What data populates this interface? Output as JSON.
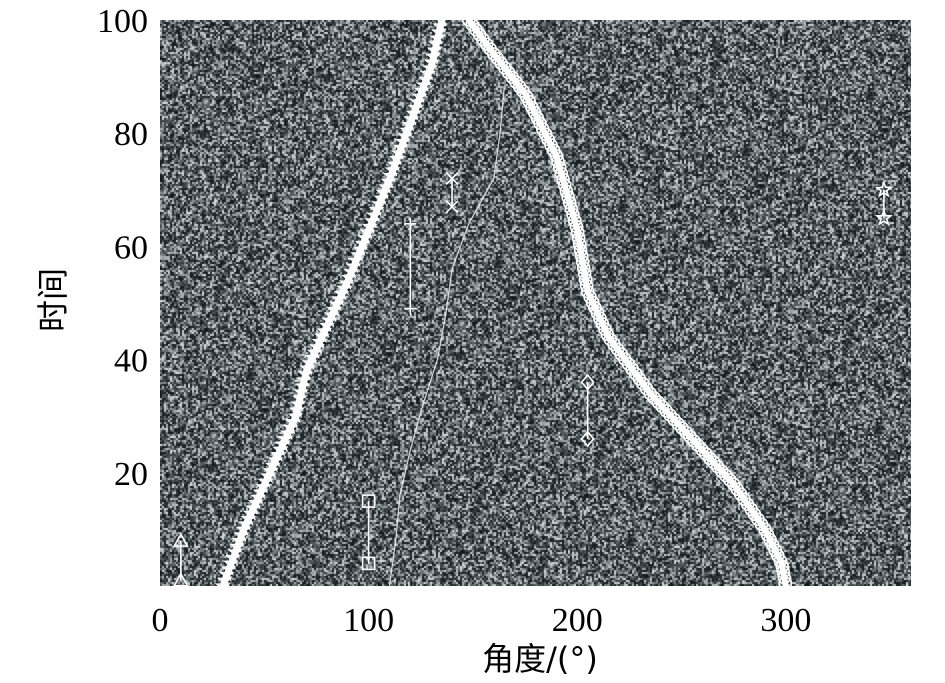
{
  "chart_data": {
    "type": "scatter",
    "title": "",
    "xlabel": "角度/(°)",
    "ylabel": "时间",
    "xlim": [
      0,
      360
    ],
    "ylim": [
      0,
      100
    ],
    "xticks": [
      0,
      100,
      200,
      300
    ],
    "xtick_labels": [
      "0",
      "100",
      "200",
      "300"
    ],
    "yticks": [
      20,
      40,
      60,
      80,
      100
    ],
    "ytick_labels": [
      "20",
      "40",
      "60",
      "80",
      "100"
    ],
    "background": "noise",
    "grid": false,
    "legend": "none",
    "colors": {
      "marker": "#ffffff",
      "noise_dark": "#1c2428",
      "noise_light": "#d0d8dc"
    },
    "tracks": [
      {
        "marker": "star",
        "points": [
          [
            30,
            0
          ],
          [
            40,
            10
          ],
          [
            50,
            18
          ],
          [
            60,
            26
          ],
          [
            65,
            30
          ],
          [
            70,
            38
          ],
          [
            80,
            46
          ],
          [
            90,
            54
          ],
          [
            100,
            63
          ],
          [
            110,
            72
          ],
          [
            120,
            82
          ],
          [
            130,
            92
          ],
          [
            135,
            100
          ]
        ]
      },
      {
        "marker": "circle",
        "points": [
          [
            148,
            100
          ],
          [
            160,
            94
          ],
          [
            175,
            87
          ],
          [
            190,
            76
          ],
          [
            200,
            63
          ],
          [
            205,
            52
          ],
          [
            215,
            44
          ],
          [
            235,
            34
          ],
          [
            255,
            26
          ],
          [
            275,
            18
          ],
          [
            290,
            10
          ],
          [
            298,
            4
          ],
          [
            300,
            0
          ]
        ]
      }
    ],
    "faint_lines": [
      {
        "points": [
          [
            110,
            0
          ],
          [
            113,
            8
          ],
          [
            115,
            16
          ],
          [
            120,
            24
          ],
          [
            126,
            32
          ],
          [
            133,
            40
          ],
          [
            137,
            48
          ],
          [
            140,
            56
          ],
          [
            148,
            64
          ],
          [
            160,
            72
          ],
          [
            163,
            80
          ],
          [
            165,
            88
          ]
        ]
      }
    ],
    "segments": [
      {
        "marker": "triangle",
        "x": 10,
        "y_from": 1,
        "y_to": 8
      },
      {
        "marker": "square",
        "x": 100,
        "y_from": 4,
        "y_to": 15
      },
      {
        "marker": "plus",
        "x": 120,
        "y_from": 49,
        "y_to": 64
      },
      {
        "marker": "x",
        "x": 140,
        "y_from": 67,
        "y_to": 72
      },
      {
        "marker": "diamond",
        "x": 205,
        "y_from": 26,
        "y_to": 36
      },
      {
        "marker": "star",
        "x": 347,
        "y_from": 65,
        "y_to": 70
      }
    ]
  }
}
